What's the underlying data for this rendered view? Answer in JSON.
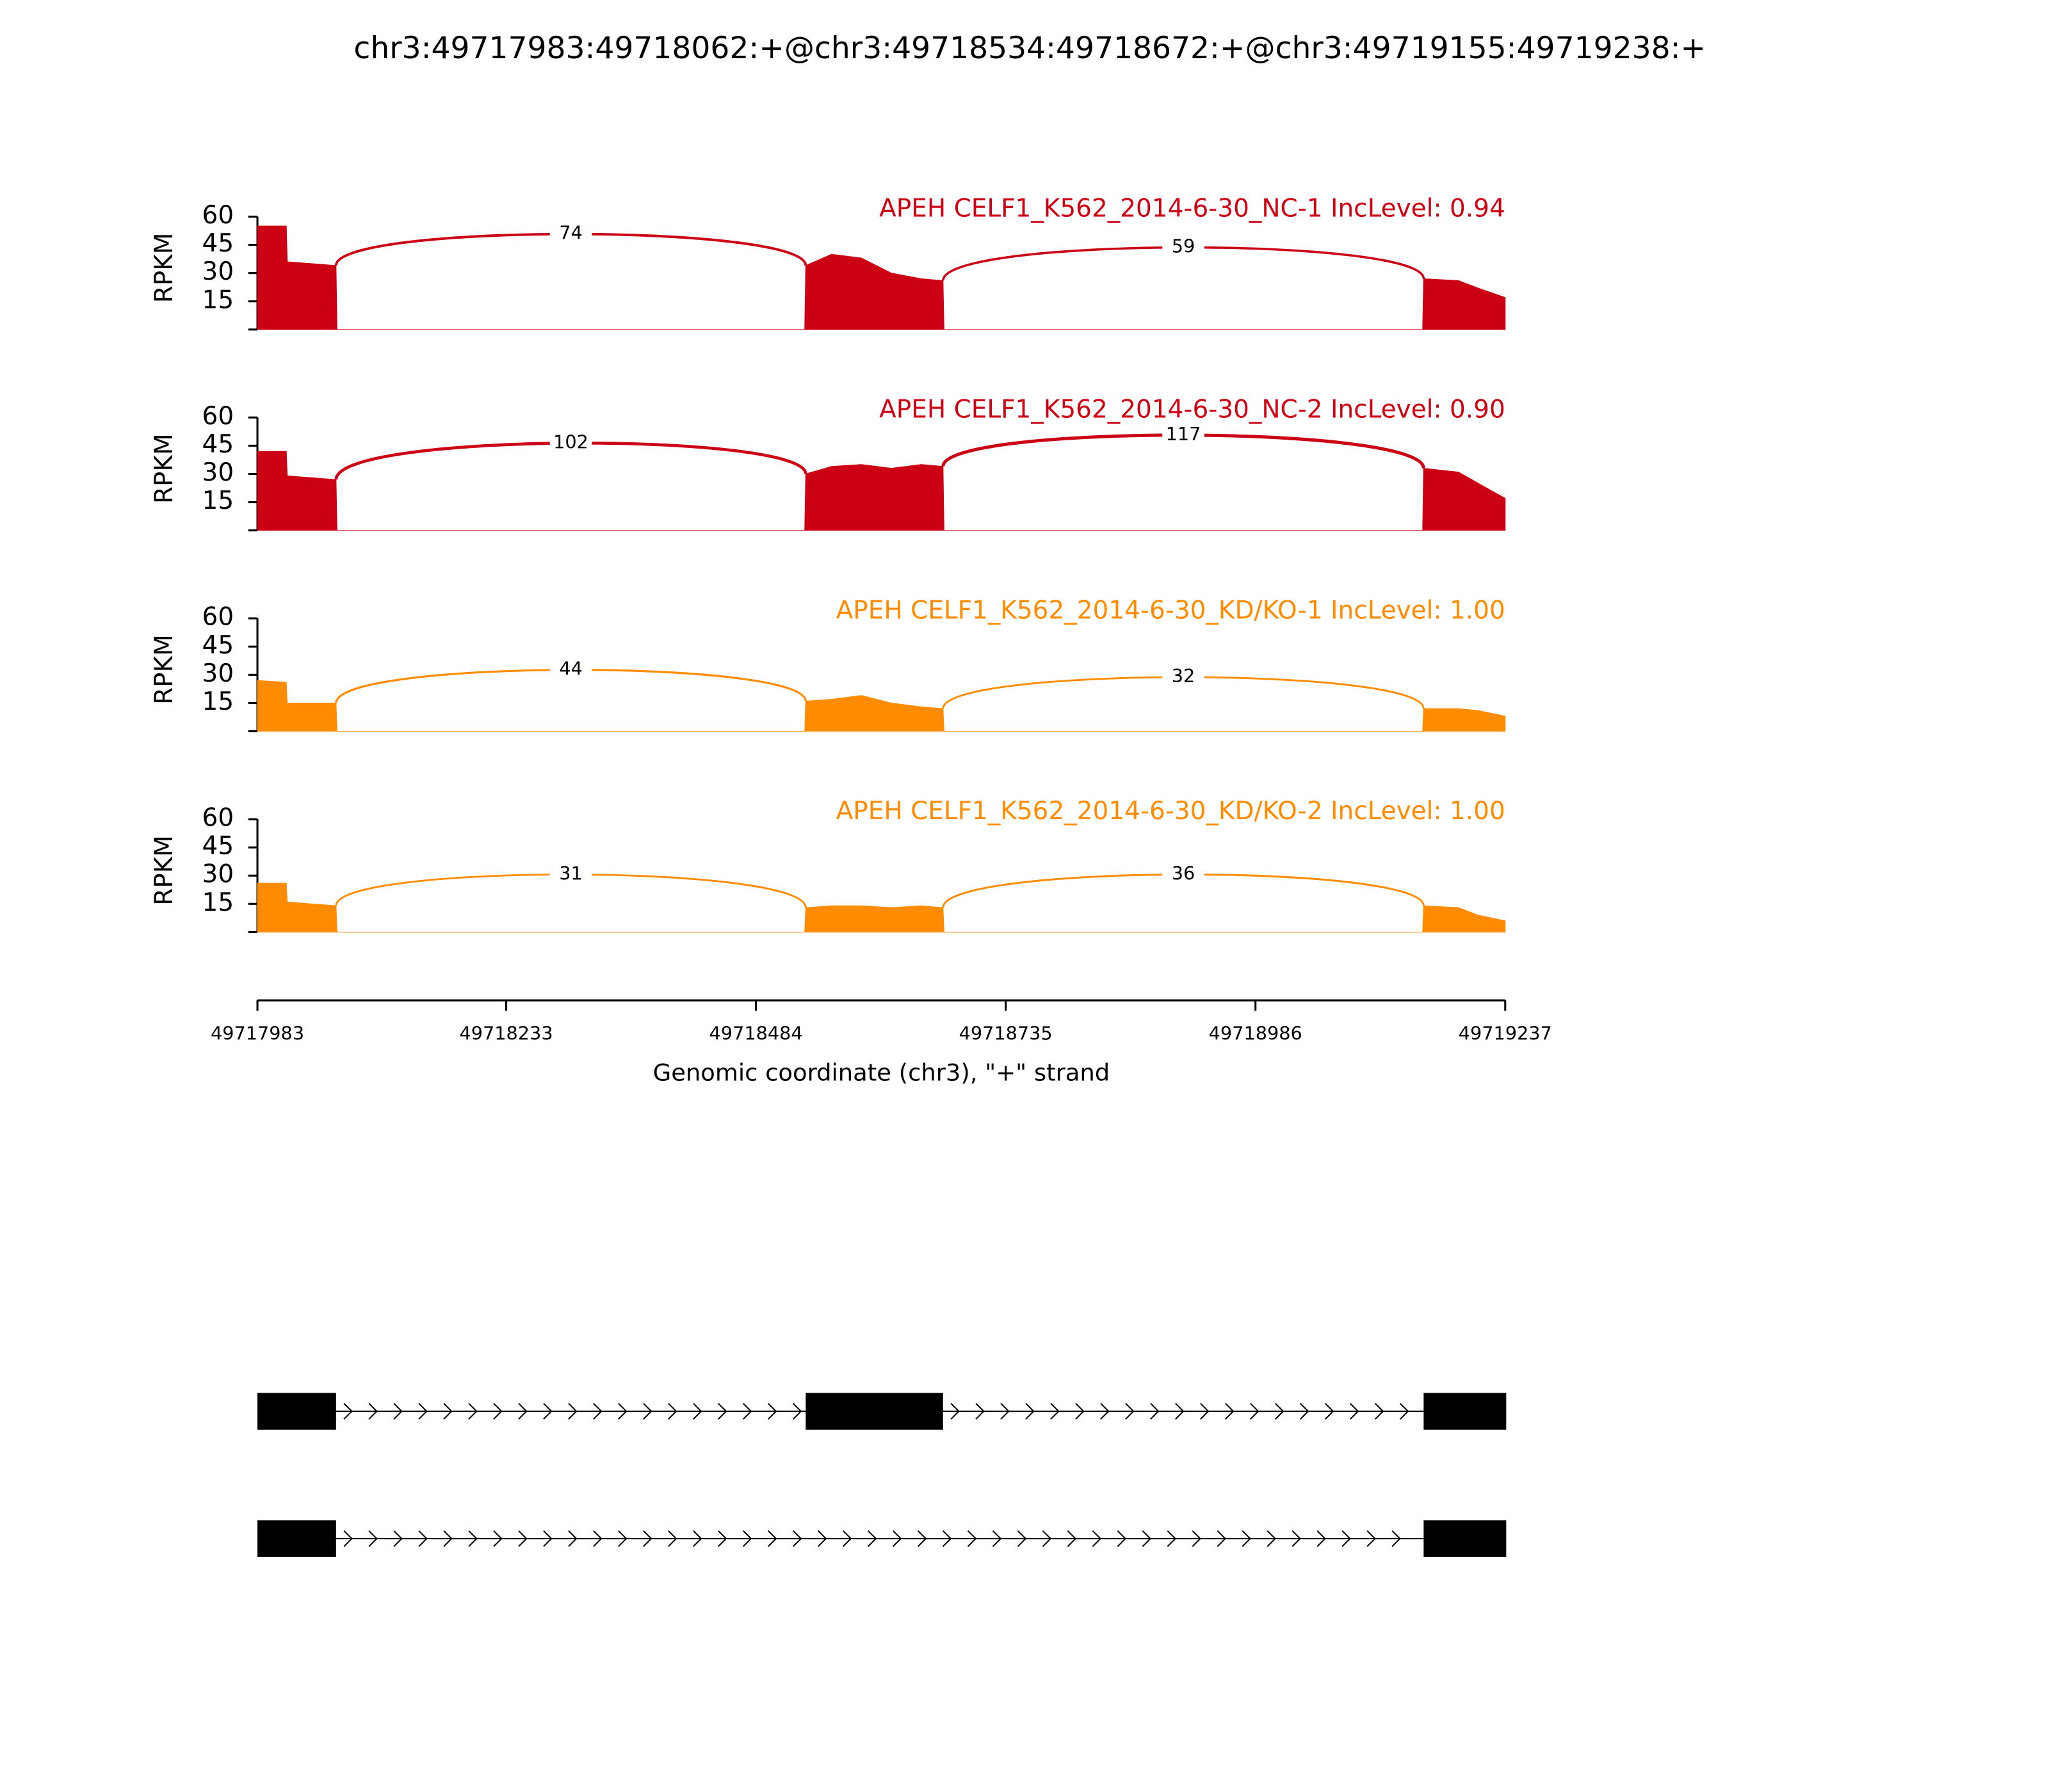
{
  "chart_data": {
    "type": "sashimi",
    "title": "chr3:49717983:49718062:+@chr3:49718534:49718672:+@chr3:49719155:49719238:+",
    "xlabel": "Genomic coordinate (chr3), \"+\" strand",
    "ylabel": "RPKM",
    "xlim": [
      49717983,
      49719237
    ],
    "xticks": [
      49717983,
      49718233,
      49718484,
      49718735,
      49718986,
      49719237
    ],
    "ylim": [
      0,
      60
    ],
    "yticks": [
      15,
      30,
      45,
      60
    ],
    "x": [
      49717983,
      49718012,
      49718013,
      49718062,
      49718063,
      49718533,
      49718534,
      49718560,
      49718590,
      49718620,
      49718650,
      49718672,
      49718673,
      49719154,
      49719155,
      49719190,
      49719210,
      49719237
    ],
    "tracks": [
      {
        "name": "APEH CELF1_K562_2014-6-30_NC-1 IncLevel: 0.94",
        "color": "#cc0014",
        "values": [
          55,
          55,
          36,
          34,
          0,
          0,
          34,
          40,
          38,
          30,
          27,
          26,
          0,
          0,
          27,
          26,
          22,
          17
        ],
        "junctions": [
          {
            "start": 49718062,
            "end": 49718534,
            "count": 74
          },
          {
            "start": 49718672,
            "end": 49719155,
            "count": 59
          }
        ]
      },
      {
        "name": "APEH CELF1_K562_2014-6-30_NC-2 IncLevel: 0.90",
        "color": "#cc0014",
        "values": [
          42,
          42,
          29,
          27,
          0,
          0,
          30,
          34,
          35,
          33,
          35,
          34,
          0,
          0,
          33,
          31,
          25,
          17
        ],
        "junctions": [
          {
            "start": 49718062,
            "end": 49718534,
            "count": 102
          },
          {
            "start": 49718672,
            "end": 49719155,
            "count": 117
          }
        ]
      },
      {
        "name": "APEH CELF1_K562_2014-6-30_KD/KO-1 IncLevel: 1.00",
        "color": "#ff8c00",
        "values": [
          27,
          26,
          15,
          15,
          0,
          0,
          16,
          17,
          19,
          15,
          13,
          12,
          0,
          0,
          12,
          12,
          11,
          8
        ],
        "junctions": [
          {
            "start": 49718062,
            "end": 49718534,
            "count": 44
          },
          {
            "start": 49718672,
            "end": 49719155,
            "count": 32
          }
        ]
      },
      {
        "name": "APEH CELF1_K562_2014-6-30_KD/KO-2 IncLevel: 1.00",
        "color": "#ff8c00",
        "values": [
          26,
          26,
          16,
          14,
          0,
          0,
          13,
          14,
          14,
          13,
          14,
          13,
          0,
          0,
          14,
          13,
          9,
          6
        ],
        "junctions": [
          {
            "start": 49718062,
            "end": 49718534,
            "count": 31
          },
          {
            "start": 49718672,
            "end": 49719155,
            "count": 36
          }
        ]
      }
    ],
    "isoforms": [
      [
        [
          49717983,
          49718062
        ],
        [
          49718534,
          49718672
        ],
        [
          49719155,
          49719238
        ]
      ],
      [
        [
          49717983,
          49718062
        ],
        [
          49719155,
          49719238
        ]
      ]
    ]
  }
}
